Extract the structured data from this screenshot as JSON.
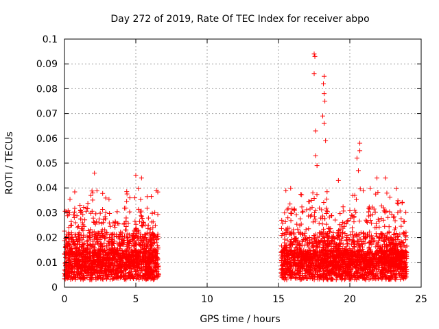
{
  "chart_data": {
    "type": "scatter",
    "title": "Day 272 of 2019, Rate Of TEC Index for receiver abpo",
    "xlabel": "GPS time / hours",
    "ylabel": "ROTI / TECUs",
    "xlim": [
      0,
      25
    ],
    "ylim": [
      0,
      0.1
    ],
    "xticks": [
      0,
      5,
      10,
      15,
      20,
      25
    ],
    "xtick_labels": [
      "0",
      "5",
      "10",
      "15",
      "20",
      "25"
    ],
    "yticks": [
      0,
      0.01,
      0.02,
      0.03,
      0.04,
      0.05,
      0.06,
      0.07,
      0.08,
      0.09,
      0.1
    ],
    "ytick_labels": [
      "0",
      "0.01",
      "0.02",
      "0.03",
      "0.04",
      "0.05",
      "0.06",
      "0.07",
      "0.08",
      "0.09",
      "0.1"
    ],
    "grid": true,
    "marker": "+",
    "marker_color": "#ff0000",
    "series": [
      {
        "name": "ROTI",
        "segments": [
          {
            "x_range": [
              0.0,
              6.6
            ],
            "density": 1800
          },
          {
            "x_range": [
              15.2,
              24.0
            ],
            "density": 2400
          }
        ],
        "peaks": [
          {
            "x": 2.1,
            "y": 0.046
          },
          {
            "x": 5.0,
            "y": 0.045
          },
          {
            "x": 5.4,
            "y": 0.044
          },
          {
            "x": 17.5,
            "y": 0.094
          },
          {
            "x": 17.55,
            "y": 0.093
          },
          {
            "x": 17.5,
            "y": 0.086
          },
          {
            "x": 18.2,
            "y": 0.085
          },
          {
            "x": 18.15,
            "y": 0.082
          },
          {
            "x": 18.2,
            "y": 0.078
          },
          {
            "x": 18.25,
            "y": 0.075
          },
          {
            "x": 18.1,
            "y": 0.069
          },
          {
            "x": 18.2,
            "y": 0.066
          },
          {
            "x": 17.6,
            "y": 0.063
          },
          {
            "x": 18.3,
            "y": 0.059
          },
          {
            "x": 20.7,
            "y": 0.058
          },
          {
            "x": 20.7,
            "y": 0.055
          },
          {
            "x": 17.6,
            "y": 0.053
          },
          {
            "x": 20.5,
            "y": 0.052
          },
          {
            "x": 17.7,
            "y": 0.049
          },
          {
            "x": 20.6,
            "y": 0.047
          },
          {
            "x": 22.5,
            "y": 0.044
          },
          {
            "x": 21.9,
            "y": 0.044
          },
          {
            "x": 19.2,
            "y": 0.043
          }
        ]
      }
    ]
  }
}
